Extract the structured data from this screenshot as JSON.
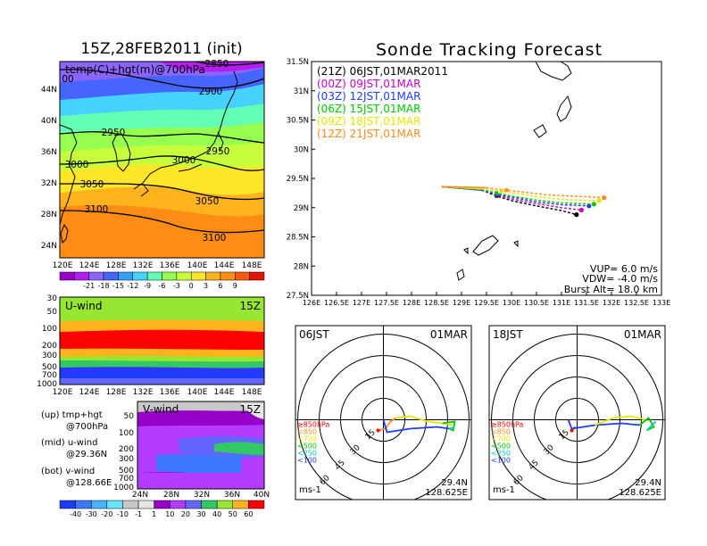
{
  "header": {
    "left_title": "15Z,28FEB2011 (init)",
    "right_title": "Sonde Tracking Forecast"
  },
  "temp_panel": {
    "label": "temp(C)+hgt(m)@700hPa",
    "x_ticks": [
      "120E",
      "124E",
      "128E",
      "132E",
      "136E",
      "140E",
      "144E",
      "148E"
    ],
    "y_ticks": [
      "44N",
      "40N",
      "36N",
      "32N",
      "28N",
      "24N"
    ],
    "contour_labels": [
      "2850",
      "2900",
      "2950",
      "2950",
      "3000",
      "3000",
      "3050",
      "3050",
      "3100",
      "3100",
      "00"
    ],
    "colorbar_labels": [
      "-21",
      "-18",
      "-15",
      "-12",
      "-9",
      "-6",
      "-3",
      "0",
      "3",
      "6",
      "9"
    ],
    "colorbar_colors": [
      "#9600c8",
      "#b41ef0",
      "#8c64ff",
      "#4664ff",
      "#32a0ff",
      "#46d2ff",
      "#64ffb4",
      "#96ff50",
      "#c8ff3c",
      "#ffe628",
      "#ffb41e",
      "#ff8c14",
      "#ff5a0a",
      "#e61400"
    ]
  },
  "uwind_panel": {
    "label": "U-wind",
    "time": "15Z",
    "y_ticks": [
      "30",
      "50",
      "100",
      "200",
      "300",
      "500",
      "700",
      "1000"
    ],
    "x_ticks": [
      "120E",
      "124E",
      "128E",
      "132E",
      "136E",
      "140E",
      "144E",
      "148E"
    ]
  },
  "vwind_panel": {
    "label": "V-wind",
    "time": "15Z",
    "y_ticks": [
      "50",
      "100",
      "200",
      "300",
      "500",
      "700",
      "1000"
    ],
    "x_ticks": [
      "24N",
      "28N",
      "32N",
      "36N",
      "40N"
    ],
    "colorbar_labels": [
      "-40",
      "-30",
      "-20",
      "-10",
      "-1",
      "1",
      "10",
      "20",
      "30",
      "40",
      "50",
      "60"
    ],
    "colorbar_colors": [
      "#1e3cff",
      "#3c78ff",
      "#46b4ff",
      "#64e6ff",
      "#c8c8c8",
      "#e6e6e6",
      "#9600c8",
      "#b43cff",
      "#6464ff",
      "#32c864",
      "#96e632",
      "#ffb41e",
      "#ff0000"
    ]
  },
  "legend_notes": {
    "up": "(up) tmp+hgt",
    "up2": "@700hPa",
    "mid": "(mid) u-wind",
    "mid2": "@29.36N",
    "bot": "(bot) v-wind",
    "bot2": "@128.66E"
  },
  "track_panel": {
    "x_ticks": [
      "126E",
      "126.5E",
      "127E",
      "127.5E",
      "128E",
      "128.5E",
      "129E",
      "129.5E",
      "130E",
      "130.5E",
      "131E",
      "131.5E",
      "132E",
      "132.5E",
      "133E"
    ],
    "y_ticks": [
      "31.5N",
      "31N",
      "30.5N",
      "30N",
      "29.5N",
      "29N",
      "28.5N",
      "28N",
      "27.5N"
    ],
    "info_vup": "VUP=  6.0 m/s",
    "info_vdw": "VDW= -4.0 m/s",
    "info_burst": "Burst Alt= 18.0 km"
  },
  "chart_data": {
    "type": "line",
    "title": "Sonde Tracking Forecast",
    "xlim": [
      126,
      133
    ],
    "ylim": [
      27.5,
      31.5
    ],
    "series": [
      {
        "name": "(21Z)  06JST,01MAR2011",
        "color": "#000000",
        "x": [
          128.6,
          129.0,
          129.4,
          129.7,
          130.0,
          130.5,
          131.0,
          131.3
        ],
        "y": [
          29.36,
          29.35,
          29.3,
          29.2,
          29.12,
          29.03,
          28.95,
          28.88
        ]
      },
      {
        "name": "(00Z)  09JST,01MAR",
        "color": "#c800c8",
        "x": [
          128.6,
          129.0,
          129.4,
          129.7,
          130.0,
          130.5,
          131.0,
          131.4
        ],
        "y": [
          29.36,
          29.35,
          29.3,
          29.22,
          29.15,
          29.07,
          29.0,
          28.96
        ]
      },
      {
        "name": "(03Z)  12JST,01MAR",
        "color": "#1e3cff",
        "x": [
          128.6,
          129.0,
          129.4,
          129.7,
          130.0,
          130.5,
          131.0,
          131.55
        ],
        "y": [
          29.36,
          29.35,
          29.3,
          29.23,
          29.18,
          29.1,
          29.05,
          29.03
        ]
      },
      {
        "name": "(06Z)  15JST,01MAR",
        "color": "#00c800",
        "x": [
          128.6,
          129.0,
          129.4,
          129.7,
          130.0,
          130.5,
          131.0,
          131.65
        ],
        "y": [
          29.36,
          29.35,
          29.31,
          29.25,
          29.2,
          29.13,
          29.08,
          29.06
        ]
      },
      {
        "name": "(09Z)  18JST,01MAR",
        "color": "#e6e600",
        "x": [
          128.6,
          129.0,
          129.4,
          129.8,
          130.2,
          130.6,
          131.0,
          131.75
        ],
        "y": [
          29.36,
          29.35,
          29.32,
          29.28,
          29.23,
          29.18,
          29.14,
          29.12
        ]
      },
      {
        "name": "(12Z)  21JST,01MAR",
        "color": "#ff8c1e",
        "x": [
          128.6,
          129.0,
          129.5,
          129.9,
          130.3,
          130.7,
          131.2,
          131.85
        ],
        "y": [
          29.36,
          29.35,
          29.34,
          29.3,
          29.26,
          29.22,
          29.2,
          29.17
        ]
      }
    ]
  },
  "hodo_left": {
    "time_label": "06JST",
    "date_label": "01MAR",
    "lat": "29.4N",
    "lon": "128.625E",
    "unit": "ms-1",
    "ring_labels": [
      "15",
      "30",
      "45",
      "60"
    ],
    "levels": [
      {
        "label": "≥850hPa",
        "color": "#ff0000"
      },
      {
        "label": "<850",
        "color": "#ff8c1e"
      },
      {
        "label": "<700",
        "color": "#e6e600"
      },
      {
        "label": "<500",
        "color": "#00c800"
      },
      {
        "label": "<250",
        "color": "#00c8c8"
      },
      {
        "label": "<100",
        "color": "#1e3cff"
      }
    ]
  },
  "hodo_right": {
    "time_label": "18JST",
    "date_label": "01MAR",
    "lat": "29.4N",
    "lon": "128.625E",
    "unit": "ms-1",
    "ring_labels": [
      "15",
      "30",
      "45",
      "60"
    ],
    "levels": [
      {
        "label": "≥850hPa",
        "color": "#ff0000"
      },
      {
        "label": "<850",
        "color": "#ff8c1e"
      },
      {
        "label": "<700",
        "color": "#e6e600"
      },
      {
        "label": "<500",
        "color": "#00c800"
      },
      {
        "label": "<250",
        "color": "#00c8c8"
      },
      {
        "label": "<100",
        "color": "#1e3cff"
      }
    ]
  }
}
